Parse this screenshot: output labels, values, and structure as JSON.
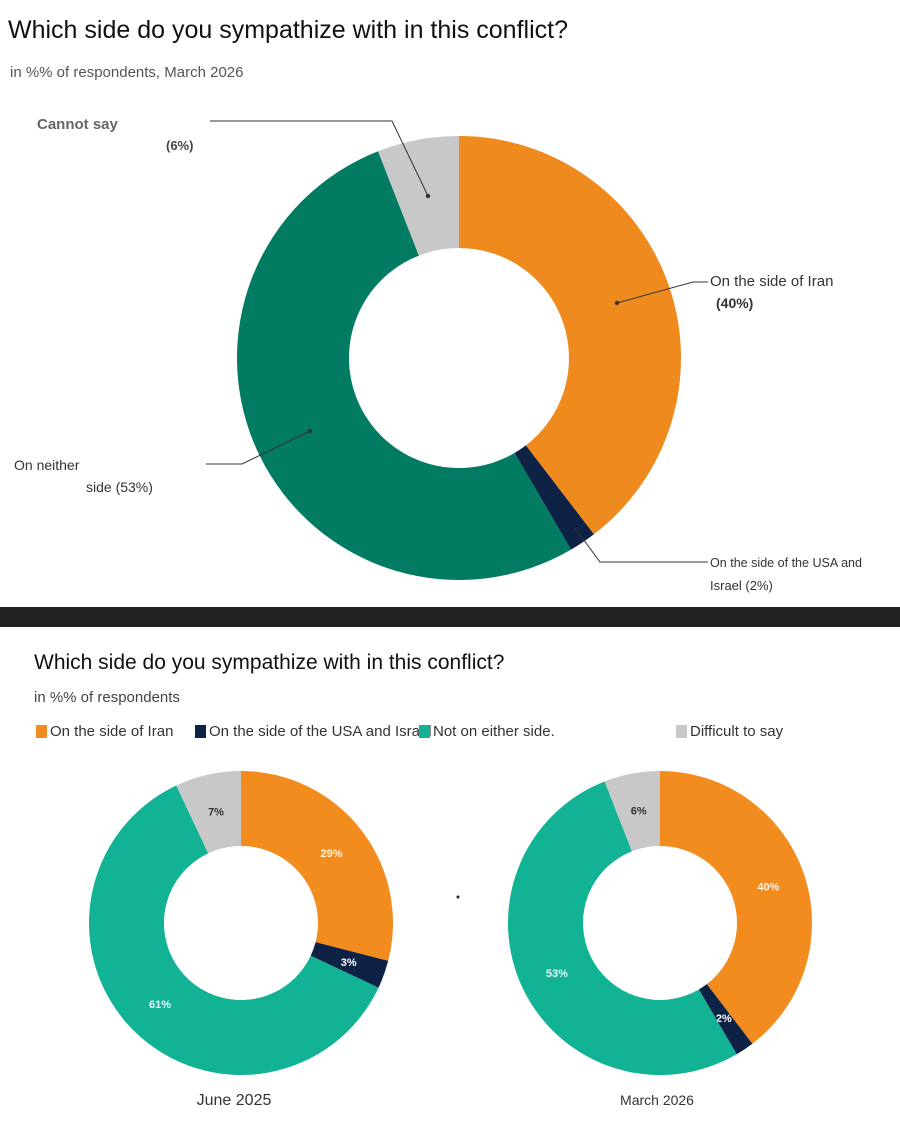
{
  "colors": {
    "iran_top": "#EE8A1E",
    "usa_top": "#0E2246",
    "neither_top": "#027B63",
    "cannot_top": "#C8C8C8",
    "iran": "#F28C1E",
    "usa": "#0E2246",
    "neither": "#12B294",
    "difficult": "#C8C8C8"
  },
  "top": {
    "title": "Which side do you sympathize with in this conflict?",
    "subtitle": "in %% of respondents, March 2026",
    "label_cannot": "Cannot say",
    "label_cannot_pct": "(6%)",
    "label_iran": "On the side of Iran",
    "label_iran_pct": "(40%)",
    "label_neither_1": "On neither",
    "label_neither_2": "side (53%)",
    "label_usa_1": "On the side of the USA and",
    "label_usa_2": "Israel (2%)"
  },
  "bottom": {
    "title": "Which side do you sympathize with in this conflict?",
    "subtitle": "in %% of respondents",
    "legend": {
      "iran": "On the side of Iran",
      "usa": "On the side of the USA and Israel",
      "neither": "Not on either side.",
      "difficult": "Difficult to say"
    },
    "left_caption": "June 2025",
    "right_caption": "March 2026"
  },
  "chart_data": [
    {
      "type": "pie",
      "title": "Which side do you sympathize with in this conflict?",
      "subtitle": "in %% of respondents, March 2026",
      "categories": [
        "On the side of Iran",
        "On the side of the USA and Israel",
        "On neither side",
        "Cannot say"
      ],
      "values": [
        40,
        2,
        53,
        6
      ],
      "donut": true
    },
    {
      "type": "pie",
      "title": "Which side do you sympathize with in this conflict?",
      "caption": "June 2025",
      "categories": [
        "On the side of Iran",
        "On the side of the USA and Israel",
        "Not on either side.",
        "Difficult to say"
      ],
      "values": [
        29,
        3,
        61,
        7
      ],
      "labels": [
        "29%",
        "3%",
        "61%",
        "7%"
      ],
      "donut": true
    },
    {
      "type": "pie",
      "title": "Which side do you sympathize with in this conflict?",
      "caption": "March 2026",
      "categories": [
        "On the side of Iran",
        "On the side of the USA and Israel",
        "Not on either side.",
        "Difficult to say"
      ],
      "values": [
        40,
        2,
        53,
        6
      ],
      "labels": [
        "40%",
        "2%",
        "53%",
        "6%"
      ],
      "donut": true
    }
  ]
}
